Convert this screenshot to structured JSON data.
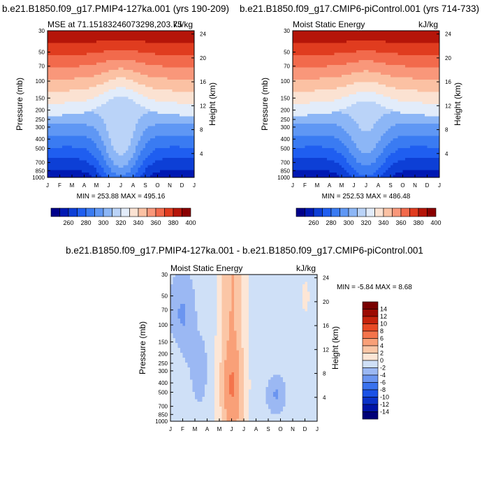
{
  "chart_data": [
    {
      "type": "heatmap",
      "panel": "top-left",
      "figure_title": "b.e21.B1850.f09_g17.PMIP4-127ka.001 (yrs 190-209)",
      "left_title": "MSE at 71.15183246073298,203.75",
      "right_title": "kJ/kg",
      "ylabel": "Pressure (mb)",
      "ylabel_right": "Height (km)",
      "stats": "MIN = 253.88 MAX = 495.16",
      "x_ticks": [
        "J",
        "F",
        "M",
        "A",
        "M",
        "J",
        "J",
        "A",
        "S",
        "O",
        "N",
        "D",
        "J"
      ],
      "pressure_ticks": [
        "30",
        "50",
        "70",
        "100",
        "150",
        "200",
        "250",
        "300",
        "400",
        "500",
        "700",
        "850",
        "1000"
      ],
      "height_ticks": [
        "24",
        "20",
        "16",
        "12",
        "8",
        "4"
      ],
      "color_levels": [
        260,
        270,
        280,
        290,
        300,
        310,
        320,
        330,
        340,
        350,
        360,
        370,
        380,
        390,
        400
      ],
      "colorbar_labels": [
        "260",
        "280",
        "300",
        "320",
        "340",
        "360",
        "380",
        "400"
      ],
      "min": 253.88,
      "max": 495.16
    },
    {
      "type": "heatmap",
      "panel": "top-right",
      "figure_title": "b.e21.B1850.f09_g17.CMIP6-piControl.001 (yrs 714-733)",
      "left_title": "Moist Static Energy",
      "right_title": "kJ/kg",
      "ylabel": "Pressure (mb)",
      "ylabel_right": "Height (km)",
      "stats": "MIN = 252.53 MAX = 486.48",
      "x_ticks": [
        "J",
        "F",
        "M",
        "A",
        "M",
        "J",
        "J",
        "A",
        "S",
        "O",
        "N",
        "D",
        "J"
      ],
      "pressure_ticks": [
        "30",
        "50",
        "70",
        "100",
        "150",
        "200",
        "250",
        "300",
        "400",
        "500",
        "700",
        "850",
        "1000"
      ],
      "height_ticks": [
        "24",
        "20",
        "16",
        "12",
        "8",
        "4"
      ],
      "color_levels": [
        260,
        270,
        280,
        290,
        300,
        310,
        320,
        330,
        340,
        350,
        360,
        370,
        380,
        390,
        400
      ],
      "colorbar_labels": [
        "260",
        "280",
        "300",
        "320",
        "340",
        "360",
        "380",
        "400"
      ],
      "min": 252.53,
      "max": 486.48
    },
    {
      "type": "heatmap",
      "panel": "bottom",
      "figure_title": "b.e21.B1850.f09_g17.PMIP4-127ka.001 - b.e21.B1850.f09_g17.CMIP6-piControl.001",
      "left_title": "Moist Static Energy",
      "right_title": "kJ/kg",
      "ylabel": "Pressure (mb)",
      "ylabel_right": "Height (km)",
      "stats": "MIN =  -5.84 MAX =   8.68",
      "x_ticks": [
        "J",
        "F",
        "M",
        "A",
        "M",
        "J",
        "J",
        "A",
        "S",
        "O",
        "N",
        "D",
        "J"
      ],
      "pressure_ticks": [
        "30",
        "50",
        "70",
        "100",
        "150",
        "200",
        "250",
        "300",
        "400",
        "500",
        "700",
        "850",
        "1000"
      ],
      "height_ticks": [
        "24",
        "20",
        "16",
        "12",
        "8",
        "4"
      ],
      "color_levels": [
        -14,
        -12,
        -10,
        -8,
        -6,
        -4,
        -2,
        0,
        2,
        4,
        6,
        8,
        10,
        12,
        14
      ],
      "colorbar_labels": [
        "14",
        "12",
        "10",
        "8",
        "6",
        "4",
        "2",
        "0",
        "-2",
        "-4",
        "-6",
        "-8",
        "-10",
        "-12",
        "-14"
      ],
      "min": -5.84,
      "max": 8.68
    }
  ],
  "colors": {
    "seq": [
      "#00008a",
      "#0019b3",
      "#0d3fd6",
      "#1f5ef0",
      "#3a7bf2",
      "#5f97f4",
      "#8cb6f6",
      "#bad3f8",
      "#e2ecfa",
      "#fbe2d2",
      "#fbc1a3",
      "#f9977a",
      "#f26a4c",
      "#e03c1f",
      "#b51509",
      "#8a0000"
    ],
    "div": [
      "#000078",
      "#0014a6",
      "#0a32c8",
      "#1a52e6",
      "#3a72ee",
      "#6b95f0",
      "#9bb8f3",
      "#cfe0f7",
      "#fde6d6",
      "#fbc6a6",
      "#f9a078",
      "#f4744c",
      "#e84a25",
      "#c6230c",
      "#9c0a02",
      "#790000"
    ]
  }
}
